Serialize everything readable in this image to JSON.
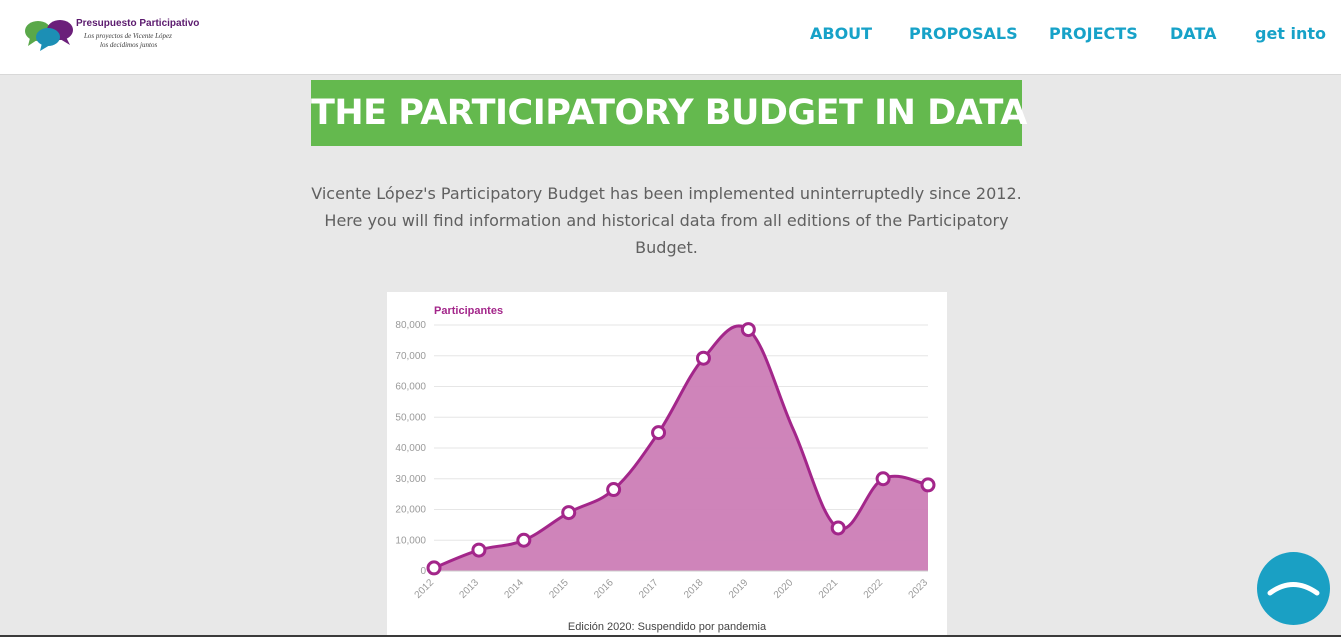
{
  "header": {
    "logo": {
      "title": "Presupuesto Participativo",
      "subtitle_line1": "Los proyectos de Vicente López",
      "subtitle_line2": "los decidimos juntos"
    },
    "nav": [
      {
        "label": "ABOUT"
      },
      {
        "label": "PROPOSALS"
      },
      {
        "label": "PROJECTS"
      },
      {
        "label": "DATA"
      },
      {
        "label": "get into"
      }
    ]
  },
  "main": {
    "title": "THE PARTICIPATORY BUDGET IN DATA",
    "intro_lines": [
      "Vicente López's Participatory Budget has been implemented uninterruptedly since 2012.",
      "Here you will find information and historical data from all editions of the Participatory",
      "Budget."
    ]
  },
  "colors": {
    "nav": "#17a2c8",
    "banner": "#64b94e",
    "series": "#a3268a",
    "series_fill": "#cc7db6",
    "scroll_button": "#1aa0c4"
  },
  "chart_data": {
    "type": "area",
    "series_label": "Participantes",
    "categories": [
      "2012",
      "2013",
      "2014",
      "2015",
      "2016",
      "2017",
      "2018",
      "2019",
      "2020",
      "2021",
      "2022",
      "2023"
    ],
    "series": [
      {
        "name": "Participantes",
        "values": [
          1000,
          6800,
          10000,
          19000,
          26500,
          45000,
          69200,
          78500,
          null,
          14000,
          30000,
          28000
        ]
      }
    ],
    "y_ticks": [
      "0",
      "10,000",
      "20,000",
      "30,000",
      "40,000",
      "50,000",
      "60,000",
      "70,000",
      "80,000"
    ],
    "ylim": [
      0,
      80000
    ],
    "grid": true,
    "footnote": "Edición 2020: Suspendido por pandemia"
  },
  "scroll_top": {
    "icon": "chevron-up-icon"
  }
}
